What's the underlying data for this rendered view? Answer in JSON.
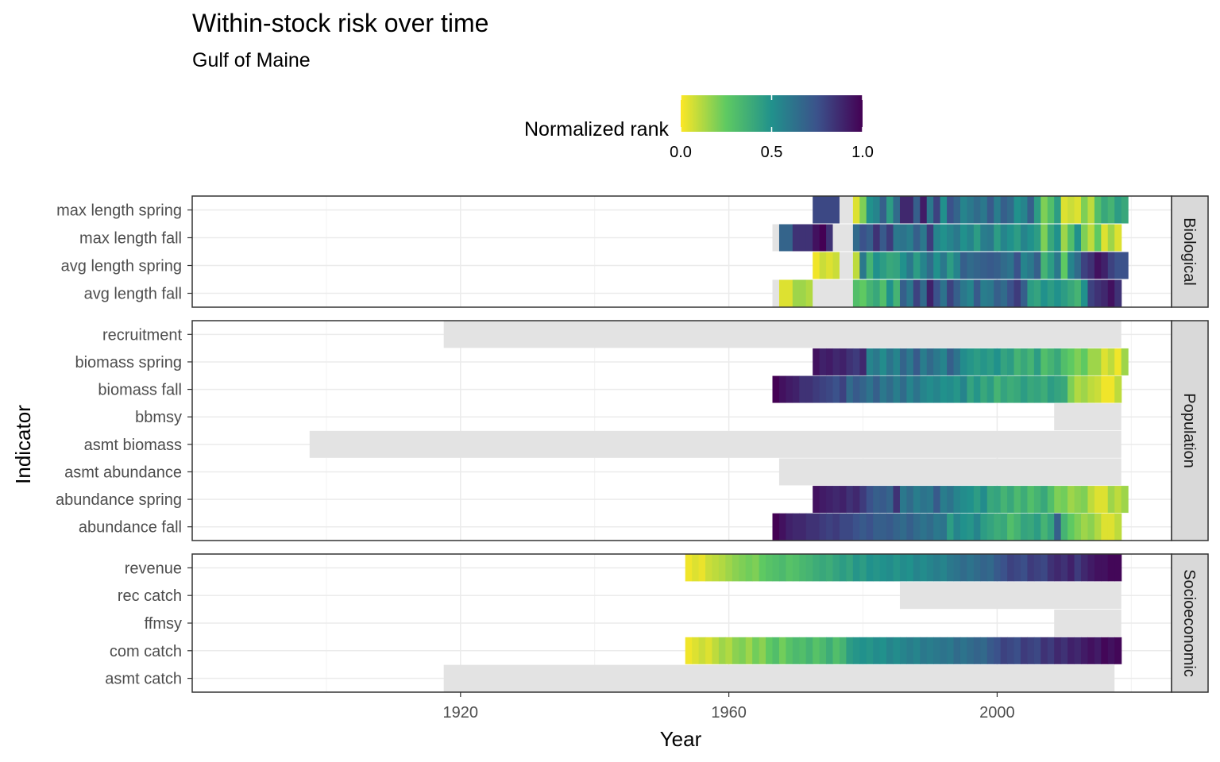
{
  "chart_data": {
    "type": "heatmap",
    "title": "Within-stock risk over time",
    "subtitle": "Gulf of Maine",
    "xlabel": "Year",
    "ylabel": "Indicator",
    "xlim": [
      1880,
      2026
    ],
    "x_ticks": [
      1920,
      1960,
      2000
    ],
    "grid": true,
    "legend": {
      "title": "Normalized rank",
      "position": "top",
      "ticks": [
        "0.0",
        "0.5",
        "1.0"
      ],
      "colors": [
        "#fde725",
        "#5ec962",
        "#21918c",
        "#3b528b",
        "#440154"
      ]
    },
    "na_color": "#e3e3e3",
    "panels": [
      {
        "label": "Biological",
        "indicators": [
          {
            "name": "max length spring",
            "segments": [
              {
                "start": 1973,
                "end": 1976,
                "values": [
                  0.78,
                  0.78,
                  0.78,
                  0.78
                ]
              },
              {
                "start": 1977,
                "end": 1978,
                "values": null
              },
              {
                "start": 1979,
                "end": 2019,
                "values": [
                  0.05,
                  0.2,
                  0.5,
                  0.55,
                  0.7,
                  0.45,
                  0.65,
                  0.88,
                  0.88,
                  0.7,
                  0.92,
                  0.6,
                  0.8,
                  0.5,
                  0.75,
                  0.68,
                  0.55,
                  0.6,
                  0.65,
                  0.6,
                  0.72,
                  0.58,
                  0.7,
                  0.65,
                  0.5,
                  0.55,
                  0.7,
                  0.45,
                  0.2,
                  0.3,
                  0.45,
                  0.05,
                  0.08,
                  0.05,
                  0.2,
                  0.1,
                  0.3,
                  0.4,
                  0.35,
                  0.45,
                  0.4
                ]
              }
            ]
          },
          {
            "name": "max length fall",
            "segments": [
              {
                "start": 1967,
                "end": 1967,
                "values": null
              },
              {
                "start": 1968,
                "end": 1975,
                "values": [
                  0.68,
                  0.68,
                  0.85,
                  0.85,
                  0.85,
                  0.95,
                  1.0,
                  0.85
                ]
              },
              {
                "start": 1976,
                "end": 1978,
                "values": null
              },
              {
                "start": 1979,
                "end": 2018,
                "values": [
                  0.65,
                  0.75,
                  0.7,
                  0.85,
                  0.72,
                  0.82,
                  0.6,
                  0.62,
                  0.58,
                  0.7,
                  0.6,
                  0.82,
                  0.55,
                  0.5,
                  0.55,
                  0.6,
                  0.5,
                  0.55,
                  0.45,
                  0.58,
                  0.6,
                  0.45,
                  0.55,
                  0.5,
                  0.45,
                  0.55,
                  0.5,
                  0.45,
                  0.2,
                  0.4,
                  0.5,
                  0.15,
                  0.3,
                  0.5,
                  0.2,
                  0.1,
                  0.25,
                  0.05,
                  0.15,
                  0.05
                ]
              }
            ]
          },
          {
            "name": "avg length spring",
            "segments": [
              {
                "start": 1973,
                "end": 1976,
                "values": [
                  0.02,
                  0.08,
                  0.05,
                  0.08
                ]
              },
              {
                "start": 1977,
                "end": 1978,
                "values": null
              },
              {
                "start": 1979,
                "end": 2019,
                "values": [
                  0.1,
                  0.6,
                  0.35,
                  0.5,
                  0.45,
                  0.4,
                  0.42,
                  0.5,
                  0.6,
                  0.45,
                  0.55,
                  0.65,
                  0.5,
                  0.6,
                  0.45,
                  0.55,
                  0.7,
                  0.65,
                  0.68,
                  0.7,
                  0.72,
                  0.7,
                  0.65,
                  0.62,
                  0.75,
                  0.55,
                  0.6,
                  0.7,
                  0.35,
                  0.45,
                  0.6,
                  0.25,
                  0.55,
                  0.65,
                  0.8,
                  0.85,
                  0.95,
                  0.9,
                  0.8,
                  0.75,
                  0.75
                ]
              }
            ]
          },
          {
            "name": "avg length fall",
            "segments": [
              {
                "start": 1967,
                "end": 1967,
                "values": null
              },
              {
                "start": 1968,
                "end": 1972,
                "values": [
                  0.05,
                  0.05,
                  0.15,
                  0.15,
                  0.12
                ]
              },
              {
                "start": 1973,
                "end": 1975,
                "values": null
              },
              {
                "start": 1976,
                "end": 1978,
                "values": null
              },
              {
                "start": 1979,
                "end": 2018,
                "values": [
                  0.3,
                  0.25,
                  0.35,
                  0.4,
                  0.3,
                  0.5,
                  0.35,
                  0.7,
                  0.6,
                  0.8,
                  0.65,
                  0.9,
                  0.75,
                  0.62,
                  0.8,
                  0.7,
                  0.6,
                  0.55,
                  0.72,
                  0.58,
                  0.6,
                  0.7,
                  0.65,
                  0.75,
                  0.82,
                  0.7,
                  0.45,
                  0.42,
                  0.5,
                  0.45,
                  0.5,
                  0.45,
                  0.4,
                  0.35,
                  0.5,
                  0.8,
                  0.85,
                  0.88,
                  0.95,
                  0.85
                ]
              }
            ]
          }
        ]
      },
      {
        "label": "Population",
        "indicators": [
          {
            "name": "recruitment",
            "segments": [
              {
                "start": 1918,
                "end": 2018,
                "values": null
              }
            ]
          },
          {
            "name": "biomass spring",
            "segments": [
              {
                "start": 1973,
                "end": 2019,
                "values": [
                  0.95,
                  0.9,
                  0.92,
                  0.88,
                  0.9,
                  0.85,
                  0.82,
                  0.88,
                  0.55,
                  0.6,
                  0.52,
                  0.62,
                  0.55,
                  0.68,
                  0.6,
                  0.72,
                  0.58,
                  0.66,
                  0.6,
                  0.55,
                  0.7,
                  0.62,
                  0.52,
                  0.48,
                  0.45,
                  0.48,
                  0.45,
                  0.5,
                  0.42,
                  0.45,
                  0.35,
                  0.4,
                  0.35,
                  0.45,
                  0.3,
                  0.35,
                  0.4,
                  0.3,
                  0.25,
                  0.2,
                  0.25,
                  0.15,
                  0.15,
                  0.05,
                  0.1,
                  0.02,
                  0.15
                ]
              }
            ]
          },
          {
            "name": "biomass fall",
            "segments": [
              {
                "start": 1967,
                "end": 2018,
                "values": [
                  1.0,
                  0.95,
                  0.92,
                  0.9,
                  0.85,
                  0.85,
                  0.82,
                  0.8,
                  0.78,
                  0.75,
                  0.8,
                  0.65,
                  0.72,
                  0.68,
                  0.62,
                  0.7,
                  0.6,
                  0.65,
                  0.58,
                  0.65,
                  0.55,
                  0.62,
                  0.55,
                  0.52,
                  0.55,
                  0.5,
                  0.52,
                  0.48,
                  0.55,
                  0.42,
                  0.48,
                  0.4,
                  0.45,
                  0.35,
                  0.42,
                  0.38,
                  0.4,
                  0.45,
                  0.4,
                  0.42,
                  0.38,
                  0.45,
                  0.42,
                  0.4,
                  0.2,
                  0.12,
                  0.15,
                  0.1,
                  0.08,
                  0.02,
                  0.02,
                  0.1
                ]
              }
            ]
          },
          {
            "name": "bbmsy",
            "segments": [
              {
                "start": 2009,
                "end": 2018,
                "values": null
              }
            ]
          },
          {
            "name": "asmt biomass",
            "segments": [
              {
                "start": 1898,
                "end": 2018,
                "values": null
              }
            ]
          },
          {
            "name": "asmt abundance",
            "segments": [
              {
                "start": 1968,
                "end": 2018,
                "values": null
              }
            ]
          },
          {
            "name": "abundance spring",
            "segments": [
              {
                "start": 1973,
                "end": 2019,
                "values": [
                  0.95,
                  0.92,
                  0.9,
                  0.88,
                  0.9,
                  0.85,
                  0.88,
                  0.82,
                  0.75,
                  0.7,
                  0.72,
                  0.68,
                  0.85,
                  0.6,
                  0.65,
                  0.58,
                  0.62,
                  0.6,
                  0.72,
                  0.58,
                  0.62,
                  0.55,
                  0.52,
                  0.5,
                  0.45,
                  0.52,
                  0.4,
                  0.42,
                  0.35,
                  0.4,
                  0.32,
                  0.38,
                  0.3,
                  0.35,
                  0.4,
                  0.3,
                  0.2,
                  0.22,
                  0.15,
                  0.18,
                  0.2,
                  0.1,
                  0.05,
                  0.05,
                  0.15,
                  0.1,
                  0.15
                ]
              }
            ]
          },
          {
            "name": "abundance fall",
            "segments": [
              {
                "start": 1967,
                "end": 2018,
                "values": [
                  1.0,
                  0.95,
                  0.9,
                  0.88,
                  0.88,
                  0.85,
                  0.85,
                  0.82,
                  0.8,
                  0.82,
                  0.78,
                  0.78,
                  0.75,
                  0.72,
                  0.75,
                  0.7,
                  0.7,
                  0.72,
                  0.68,
                  0.65,
                  0.7,
                  0.65,
                  0.62,
                  0.65,
                  0.6,
                  0.62,
                  0.45,
                  0.55,
                  0.5,
                  0.48,
                  0.55,
                  0.45,
                  0.42,
                  0.38,
                  0.4,
                  0.3,
                  0.35,
                  0.42,
                  0.4,
                  0.45,
                  0.35,
                  0.42,
                  0.7,
                  0.35,
                  0.25,
                  0.2,
                  0.15,
                  0.18,
                  0.12,
                  0.05,
                  0.05,
                  0.1
                ]
              }
            ]
          }
        ]
      },
      {
        "label": "Socioeconomic",
        "indicators": [
          {
            "name": "revenue",
            "segments": [
              {
                "start": 1954,
                "end": 2018,
                "values": [
                  0.02,
                  0.05,
                  0.03,
                  0.08,
                  0.1,
                  0.12,
                  0.15,
                  0.18,
                  0.2,
                  0.22,
                  0.2,
                  0.25,
                  0.28,
                  0.3,
                  0.32,
                  0.28,
                  0.3,
                  0.33,
                  0.35,
                  0.38,
                  0.4,
                  0.38,
                  0.42,
                  0.45,
                  0.42,
                  0.48,
                  0.45,
                  0.5,
                  0.48,
                  0.5,
                  0.52,
                  0.48,
                  0.52,
                  0.5,
                  0.55,
                  0.52,
                  0.55,
                  0.58,
                  0.55,
                  0.6,
                  0.62,
                  0.65,
                  0.62,
                  0.65,
                  0.68,
                  0.66,
                  0.72,
                  0.75,
                  0.8,
                  0.78,
                  0.76,
                  0.82,
                  0.8,
                  0.78,
                  0.85,
                  0.88,
                  0.85,
                  0.9,
                  0.82,
                  0.88,
                  0.92,
                  0.95,
                  0.95,
                  0.98,
                  0.98
                ]
              }
            ]
          },
          {
            "name": "rec catch",
            "segments": [
              {
                "start": 1986,
                "end": 2018,
                "values": null
              }
            ]
          },
          {
            "name": "ffmsy",
            "segments": [
              {
                "start": 2009,
                "end": 2018,
                "values": null
              }
            ]
          },
          {
            "name": "com catch",
            "segments": [
              {
                "start": 1954,
                "end": 2018,
                "values": [
                  0.02,
                  0.05,
                  0.08,
                  0.05,
                  0.1,
                  0.15,
                  0.12,
                  0.18,
                  0.2,
                  0.15,
                  0.22,
                  0.18,
                  0.25,
                  0.3,
                  0.22,
                  0.28,
                  0.32,
                  0.3,
                  0.35,
                  0.28,
                  0.32,
                  0.38,
                  0.3,
                  0.35,
                  0.45,
                  0.48,
                  0.5,
                  0.48,
                  0.52,
                  0.5,
                  0.55,
                  0.52,
                  0.55,
                  0.58,
                  0.55,
                  0.6,
                  0.58,
                  0.6,
                  0.62,
                  0.6,
                  0.65,
                  0.62,
                  0.65,
                  0.68,
                  0.66,
                  0.72,
                  0.75,
                  0.8,
                  0.78,
                  0.76,
                  0.82,
                  0.8,
                  0.78,
                  0.85,
                  0.82,
                  0.88,
                  0.85,
                  0.9,
                  0.88,
                  0.92,
                  0.95,
                  0.92,
                  0.98,
                  0.95,
                  0.98
                ]
              }
            ]
          },
          {
            "name": "asmt catch",
            "segments": [
              {
                "start": 1918,
                "end": 2017,
                "values": null
              }
            ]
          }
        ]
      }
    ]
  }
}
